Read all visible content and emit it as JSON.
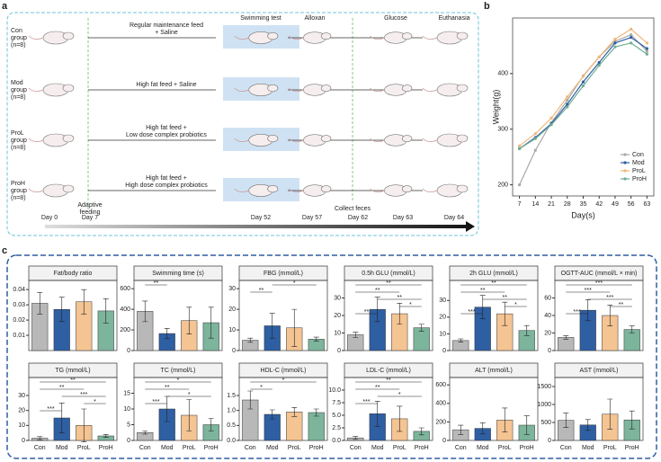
{
  "panel_labels": [
    "a",
    "b",
    "c"
  ],
  "diagram": {
    "groups": [
      {
        "label": [
          "Con",
          "group",
          "(n=8)"
        ],
        "treatment": [
          "Regular maintenance feed",
          "+ Saline"
        ]
      },
      {
        "label": [
          "Mod",
          "group",
          "(n=8)"
        ],
        "treatment": [
          "High fat feed + Saline"
        ]
      },
      {
        "label": [
          "ProL",
          "group",
          "(n=8)"
        ],
        "treatment": [
          "High fat feed +",
          "Low dose complex probiotics"
        ]
      },
      {
        "label": [
          "ProH",
          "group",
          "(n=8)"
        ],
        "treatment": [
          "High fat feed +",
          "High dose complex probiotics"
        ]
      }
    ],
    "steps": [
      "Swimming test",
      "Alloxan",
      "Glucose",
      "Euthanasia"
    ],
    "adaptive": [
      "Adaptive",
      "feeding"
    ],
    "collect": "Collect feces",
    "days": [
      "Day 0",
      "Day 7",
      "Day 52",
      "Day 57",
      "Day 62",
      "Day 63",
      "Day 64"
    ]
  },
  "chart_data": [
    {
      "type": "line",
      "xlabel": "Day(s)",
      "ylabel": "Weight(g)",
      "x": [
        7,
        14,
        21,
        28,
        35,
        42,
        49,
        56,
        63
      ],
      "xlim": [
        4,
        66
      ],
      "xticks": [
        7,
        14,
        21,
        28,
        35,
        42,
        49,
        56,
        63
      ],
      "ylim": [
        180,
        500
      ],
      "yticks": [
        200,
        300,
        400
      ],
      "legend": "bottom-right",
      "series": [
        {
          "name": "Con",
          "color": "#a8a8a8",
          "values": [
            200,
            262,
            312,
            352,
            396,
            430,
            458,
            470,
            440
          ]
        },
        {
          "name": "Mod",
          "color": "#2e5fa3",
          "values": [
            265,
            285,
            310,
            345,
            385,
            420,
            455,
            465,
            445
          ]
        },
        {
          "name": "ProL",
          "color": "#f0b77c",
          "values": [
            270,
            292,
            320,
            358,
            395,
            430,
            462,
            480,
            455
          ]
        },
        {
          "name": "ProH",
          "color": "#6fae93",
          "values": [
            265,
            283,
            308,
            340,
            378,
            415,
            448,
            455,
            435
          ]
        }
      ]
    },
    {
      "type": "bar",
      "title": "Fat/body ratio",
      "categories": [
        "Con",
        "Mod",
        "ProL",
        "ProH"
      ],
      "x_labels": false,
      "colors": [
        "#b8b8b8",
        "#2e5fa3",
        "#f4c493",
        "#7db59c"
      ],
      "values": [
        0.031,
        0.027,
        0.032,
        0.026
      ],
      "errors": [
        0.007,
        0.008,
        0.008,
        0.008
      ],
      "ylim": [
        0,
        0.046
      ],
      "yticks": [
        0.01,
        0.02,
        0.03,
        0.04
      ],
      "comparisons": []
    },
    {
      "type": "bar",
      "title": "Swimming time (s)",
      "categories": [
        "Con",
        "Mod",
        "ProL",
        "ProH"
      ],
      "x_labels": false,
      "colors": [
        "#b8b8b8",
        "#2e5fa3",
        "#f4c493",
        "#7db59c"
      ],
      "values": [
        380,
        165,
        290,
        270
      ],
      "errors": [
        100,
        50,
        130,
        150
      ],
      "ylim": [
        0,
        680
      ],
      "yticks": [
        0,
        200,
        400,
        600
      ],
      "comparisons": [
        {
          "groups": [
            "Con",
            "Mod"
          ],
          "label": "**"
        }
      ]
    },
    {
      "type": "bar",
      "title": "FBG (mmol/L)",
      "categories": [
        "Con",
        "Mod",
        "ProL",
        "ProH"
      ],
      "x_labels": false,
      "colors": [
        "#b8b8b8",
        "#2e5fa3",
        "#f4c493",
        "#7db59c"
      ],
      "values": [
        5,
        12,
        11,
        5.5
      ],
      "errors": [
        1,
        6,
        9,
        1
      ],
      "ylim": [
        0,
        34
      ],
      "yticks": [
        0,
        10,
        20,
        30
      ],
      "comparisons": [
        {
          "groups": [
            "Con",
            "Mod"
          ],
          "label": "**"
        },
        {
          "groups": [
            "Mod",
            "ProH"
          ],
          "label": "*"
        }
      ]
    },
    {
      "type": "bar",
      "title": "0.5h GLU (mmol/L)",
      "categories": [
        "Con",
        "Mod",
        "ProL",
        "ProH"
      ],
      "x_labels": false,
      "colors": [
        "#b8b8b8",
        "#2e5fa3",
        "#f4c493",
        "#7db59c"
      ],
      "values": [
        9,
        23.5,
        21,
        13
      ],
      "errors": [
        1.5,
        7,
        6,
        2
      ],
      "ylim": [
        0,
        40
      ],
      "yticks": [
        0,
        10,
        20,
        30
      ],
      "comparisons": [
        {
          "groups": [
            "Con",
            "Mod"
          ],
          "label": "**"
        },
        {
          "groups": [
            "ProL",
            "ProH"
          ],
          "label": "*"
        },
        {
          "groups": [
            "Mod",
            "ProH"
          ],
          "label": "**"
        },
        {
          "groups": [
            "Con",
            "ProL"
          ],
          "label": "**"
        },
        {
          "groups": [
            "Con",
            "ProH"
          ],
          "label": "**"
        }
      ]
    },
    {
      "type": "bar",
      "title": "2h GLU (mmol/L)",
      "categories": [
        "Con",
        "Mod",
        "ProL",
        "ProH"
      ],
      "x_labels": false,
      "colors": [
        "#b8b8b8",
        "#2e5fa3",
        "#f4c493",
        "#7db59c"
      ],
      "values": [
        6,
        26,
        22,
        12
      ],
      "errors": [
        1,
        7,
        7,
        3
      ],
      "ylim": [
        0,
        42
      ],
      "yticks": [
        0,
        10,
        20,
        30
      ],
      "comparisons": [
        {
          "groups": [
            "Con",
            "Mod"
          ],
          "label": "***"
        },
        {
          "groups": [
            "ProL",
            "ProH"
          ],
          "label": "*"
        },
        {
          "groups": [
            "Mod",
            "ProH"
          ],
          "label": "**"
        },
        {
          "groups": [
            "Con",
            "ProL"
          ],
          "label": "**"
        },
        {
          "groups": [
            "Con",
            "ProH"
          ],
          "label": "**"
        }
      ]
    },
    {
      "type": "bar",
      "title": "OGTT-AUC (mmol/L × min)",
      "categories": [
        "Con",
        "Mod",
        "ProL",
        "ProH"
      ],
      "x_labels": false,
      "colors": [
        "#b8b8b8",
        "#2e5fa3",
        "#f4c493",
        "#7db59c"
      ],
      "values": [
        15,
        46,
        40,
        24
      ],
      "errors": [
        2,
        12,
        12,
        4
      ],
      "ylim": [
        0,
        80
      ],
      "yticks": [
        0,
        20,
        40,
        60
      ],
      "comparisons": [
        {
          "groups": [
            "Con",
            "Mod"
          ],
          "label": "***"
        },
        {
          "groups": [
            "ProL",
            "ProH"
          ],
          "label": "**"
        },
        {
          "groups": [
            "Mod",
            "ProH"
          ],
          "label": "***"
        },
        {
          "groups": [
            "Con",
            "ProL"
          ],
          "label": "***"
        },
        {
          "groups": [
            "Con",
            "ProH"
          ],
          "label": "***"
        }
      ]
    },
    {
      "type": "bar",
      "title": "TG (mmol/L)",
      "categories": [
        "Con",
        "Mod",
        "ProL",
        "ProH"
      ],
      "x_labels": true,
      "colors": [
        "#b8b8b8",
        "#2e5fa3",
        "#f4c493",
        "#7db59c"
      ],
      "values": [
        1.5,
        15,
        10,
        3
      ],
      "errors": [
        1,
        10,
        11,
        1
      ],
      "ylim": [
        0,
        42
      ],
      "yticks": [
        0,
        10,
        20,
        30
      ],
      "comparisons": [
        {
          "groups": [
            "Con",
            "Mod"
          ],
          "label": "***"
        },
        {
          "groups": [
            "ProL",
            "ProH"
          ],
          "label": "*"
        },
        {
          "groups": [
            "Mod",
            "ProH"
          ],
          "label": "***"
        },
        {
          "groups": [
            "Con",
            "ProL"
          ],
          "label": "**"
        },
        {
          "groups": [
            "Con",
            "ProH"
          ],
          "label": "**"
        }
      ]
    },
    {
      "type": "bar",
      "title": "TC (mmol/L)",
      "categories": [
        "Con",
        "Mod",
        "ProL",
        "ProH"
      ],
      "x_labels": true,
      "colors": [
        "#b8b8b8",
        "#2e5fa3",
        "#f4c493",
        "#7db59c"
      ],
      "values": [
        2.5,
        10,
        8,
        5
      ],
      "errors": [
        0.5,
        4,
        5,
        2
      ],
      "ylim": [
        0,
        20
      ],
      "yticks": [
        0,
        5,
        10,
        15
      ],
      "comparisons": [
        {
          "groups": [
            "Con",
            "Mod"
          ],
          "label": "***"
        },
        {
          "groups": [
            "Mod",
            "ProH"
          ],
          "label": "*"
        },
        {
          "groups": [
            "Con",
            "ProL"
          ],
          "label": "**"
        },
        {
          "groups": [
            "Con",
            "ProH"
          ],
          "label": "*"
        }
      ]
    },
    {
      "type": "bar",
      "title": "HDL-C (mmol/L)",
      "categories": [
        "Con",
        "Mod",
        "ProL",
        "ProH"
      ],
      "x_labels": true,
      "colors": [
        "#b8b8b8",
        "#2e5fa3",
        "#f4c493",
        "#7db59c"
      ],
      "values": [
        1.35,
        0.87,
        0.95,
        0.93
      ],
      "errors": [
        0.3,
        0.15,
        0.15,
        0.12
      ],
      "ylim": [
        0,
        2.1
      ],
      "yticks": [
        {
          "value": 0,
          "label": "0.0"
        },
        {
          "value": 0.5,
          "label": "0.5"
        },
        {
          "value": 1,
          "label": "1.0"
        },
        {
          "value": 1.5,
          "label": "1.5"
        }
      ],
      "comparisons": [
        {
          "groups": [
            "Con",
            "Mod"
          ],
          "label": "*"
        },
        {
          "groups": [
            "Con",
            "ProH"
          ],
          "label": "*"
        }
      ]
    },
    {
      "type": "bar",
      "title": "LDL-C (mmol/L)",
      "categories": [
        "Con",
        "Mod",
        "ProL",
        "ProH"
      ],
      "x_labels": true,
      "colors": [
        "#b8b8b8",
        "#2e5fa3",
        "#f4c493",
        "#7db59c"
      ],
      "values": [
        0.5,
        5.3,
        4.3,
        1.8
      ],
      "errors": [
        0.3,
        2.5,
        2.5,
        0.7
      ],
      "ylim": [
        0,
        12.5
      ],
      "yticks": [
        {
          "value": 0,
          "label": "0.0"
        },
        {
          "value": 2.5,
          "label": "2.5"
        },
        {
          "value": 5,
          "label": "5.0"
        },
        {
          "value": 7.5,
          "label": "7.5"
        },
        {
          "value": 10,
          "label": "10.0"
        }
      ],
      "comparisons": [
        {
          "groups": [
            "Con",
            "Mod"
          ],
          "label": "***"
        },
        {
          "groups": [
            "Mod",
            "ProH"
          ],
          "label": "*"
        },
        {
          "groups": [
            "Con",
            "ProL"
          ],
          "label": "**"
        },
        {
          "groups": [
            "Con",
            "ProH"
          ],
          "label": "**"
        }
      ]
    },
    {
      "type": "bar",
      "title": "ALT (mmol/L)",
      "categories": [
        "Con",
        "Mod",
        "ProL",
        "ProH"
      ],
      "x_labels": true,
      "colors": [
        "#b8b8b8",
        "#2e5fa3",
        "#f4c493",
        "#7db59c"
      ],
      "values": [
        115,
        130,
        220,
        165
      ],
      "errors": [
        50,
        60,
        130,
        100
      ],
      "ylim": [
        0,
        680
      ],
      "yticks": [
        0,
        200,
        400,
        600
      ],
      "comparisons": []
    },
    {
      "type": "bar",
      "title": "AST (mmol/L)",
      "categories": [
        "Con",
        "Mod",
        "ProL",
        "ProH"
      ],
      "x_labels": true,
      "colors": [
        "#b8b8b8",
        "#2e5fa3",
        "#f4c493",
        "#7db59c"
      ],
      "values": [
        560,
        430,
        730,
        570
      ],
      "errors": [
        200,
        150,
        420,
        250
      ],
      "ylim": [
        0,
        1750
      ],
      "yticks": [
        0,
        500,
        1000,
        1500
      ],
      "comparisons": []
    }
  ]
}
